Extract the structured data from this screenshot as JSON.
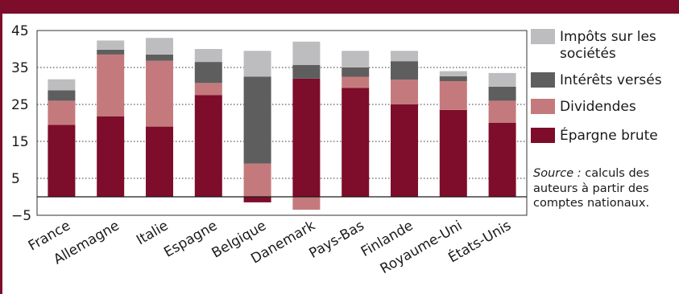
{
  "chart_data": {
    "type": "bar",
    "stacked": true,
    "categories": [
      "France",
      "Allemagne",
      "Italie",
      "Espagne",
      "Belgique",
      "Danemark",
      "Pays-Bas",
      "Finlande",
      "Royaume-Uni",
      "États-Unis"
    ],
    "series": [
      {
        "name": "Épargne brute",
        "color": "#7d0d2a",
        "values": [
          19.5,
          21.8,
          19,
          27.5,
          -1.5,
          32,
          29.5,
          25,
          23.5,
          20
        ]
      },
      {
        "name": "Dividendes",
        "color": "#c47a7c",
        "values": [
          6.5,
          16.7,
          17.8,
          3.3,
          9,
          -3.5,
          3,
          6.7,
          7.8,
          6
        ]
      },
      {
        "name": "Intérêts versés",
        "color": "#5e5e5e",
        "values": [
          2.8,
          1.3,
          1.7,
          5.7,
          23.5,
          3.7,
          2.5,
          5,
          1.3,
          3.8
        ]
      },
      {
        "name": "Impôts sur les sociétés",
        "color": "#bdbdbf",
        "values": [
          3,
          2.5,
          4.5,
          3.5,
          7,
          6.3,
          4.5,
          2.8,
          1.4,
          3.7
        ]
      }
    ],
    "ylim": [
      -5,
      45
    ],
    "yticks": [
      45,
      35,
      25,
      15,
      5,
      -5
    ],
    "grid": "horizontal-dotted",
    "legend_position": "right",
    "title": "",
    "xlabel": "",
    "ylabel": ""
  },
  "legend": {
    "items": [
      {
        "label": "Impôts sur les sociétés",
        "color": "#bdbdbf"
      },
      {
        "label": "Intérêts versés",
        "color": "#5e5e5e"
      },
      {
        "label": "Dividendes",
        "color": "#c47a7c"
      },
      {
        "label": "Épargne brute",
        "color": "#7d0d2a"
      }
    ]
  },
  "source": {
    "label": "Source :",
    "text": " calculs des auteurs à partir des comptes nationaux."
  }
}
